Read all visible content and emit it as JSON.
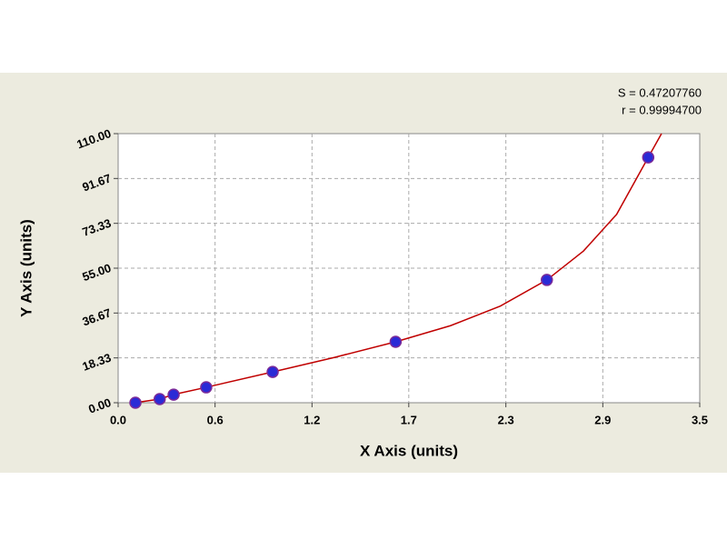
{
  "chart_data": {
    "type": "scatter",
    "x_label": "X Axis (units)",
    "y_label": "Y Axis (units)",
    "annotations": [
      "S = 0.47207760",
      "r = 0.99994700"
    ],
    "xlim": [
      0,
      3.5
    ],
    "xticks": [
      {
        "value": 0,
        "label": "0.0"
      },
      {
        "value": 0.5833,
        "label": "0.6"
      },
      {
        "value": 1.1667,
        "label": "1.2"
      },
      {
        "value": 1.749,
        "label": "1.7"
      },
      {
        "value": 2.3333,
        "label": "2.3"
      },
      {
        "value": 2.9167,
        "label": "2.9"
      },
      3.5
    ],
    "ylim": [
      0,
      110
    ],
    "yticks": [
      {
        "value": 0,
        "label": "0.00"
      },
      18.33,
      36.67,
      {
        "value": 55,
        "label": "55.00"
      },
      73.33,
      91.67,
      {
        "value": 110,
        "label": "110.00"
      }
    ],
    "grid": true,
    "points": {
      "color": "#2a2ad6",
      "x": [
        0.104,
        0.25,
        0.334,
        0.53,
        0.93,
        1.67,
        2.58,
        3.19
      ],
      "values": [
        0,
        1.5,
        3.3,
        6.3,
        12.6,
        24.9,
        50.2,
        100.3
      ]
    },
    "curve": {
      "color": "#c00000",
      "x": [
        0.1,
        0.25,
        0.33,
        0.53,
        0.93,
        1.3,
        1.67,
        2.0,
        2.3,
        2.58,
        2.8,
        3.0,
        3.19,
        3.27
      ],
      "values": [
        0,
        1.5,
        3.3,
        6.3,
        12.6,
        18.5,
        24.9,
        31.5,
        39.5,
        50.2,
        62,
        77,
        100.3,
        110
      ]
    }
  }
}
